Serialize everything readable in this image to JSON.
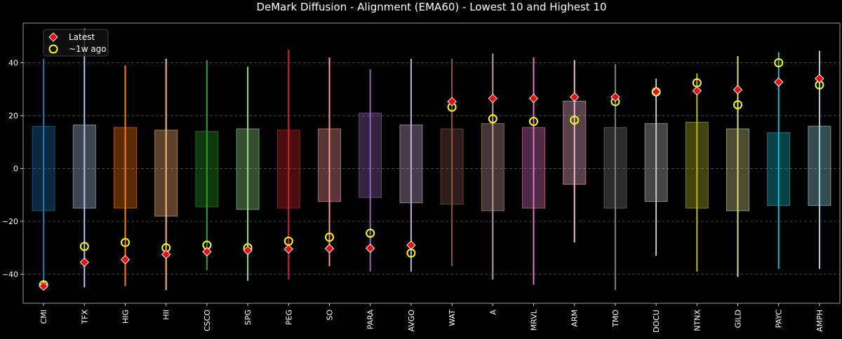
{
  "chart_data": {
    "type": "box",
    "title": "DeMark Diffusion - Alignment (EMA60) - Lowest 10 and Highest 10",
    "xlabel": "",
    "ylabel": "",
    "ylim": [
      -51,
      55
    ],
    "yticks": [
      -40,
      -20,
      0,
      20,
      40
    ],
    "grid": "y-dashed",
    "legend": {
      "placement": "top-left",
      "entries": [
        "Latest",
        "~1w ago"
      ]
    },
    "categories": [
      "CMI",
      "TFX",
      "HIG",
      "HII",
      "CSCO",
      "SPG",
      "PEG",
      "SO",
      "PARA",
      "AVGO",
      "WAT",
      "A",
      "MRVL",
      "ARM",
      "TMO",
      "DOCU",
      "NTNX",
      "GILD",
      "PAYC",
      "AMPH"
    ],
    "colors": [
      "#1f77b4",
      "#aec7e8",
      "#ff7f0e",
      "#ffbb78",
      "#2ca02c",
      "#98df8a",
      "#d62728",
      "#ff9896",
      "#9467bd",
      "#c5b0d5",
      "#8c564b",
      "#c49c94",
      "#e377c2",
      "#f7b6d2",
      "#7f7f7f",
      "#c7c7c7",
      "#bcbd22",
      "#dbdb8d",
      "#17becf",
      "#9edae5"
    ],
    "whisker_low": [
      -45,
      -45,
      -44.5,
      -46,
      -38.5,
      -42.5,
      -42,
      -37,
      -39,
      -39,
      -37,
      -42,
      -44,
      -28,
      -46,
      -33,
      -39,
      -41,
      -38,
      -38
    ],
    "whisker_high": [
      41.5,
      53,
      39,
      41.5,
      41,
      38.5,
      45,
      42,
      37.5,
      41.5,
      41.5,
      43.5,
      42,
      41,
      39.5,
      34,
      36,
      42.5,
      44,
      44.5
    ],
    "q1": [
      -16,
      -15,
      -15,
      -18,
      -14.5,
      -15.5,
      -15,
      -12.5,
      -11,
      -13,
      -13.5,
      -16,
      -15,
      -6,
      -15,
      -12.5,
      -15,
      -16,
      -14,
      -14
    ],
    "q3": [
      16,
      16.5,
      15.5,
      14.5,
      14,
      15,
      14.5,
      15,
      21,
      16.5,
      15,
      17,
      15.5,
      25.5,
      15.5,
      17,
      17.5,
      15,
      13.5,
      16
    ],
    "series": [
      {
        "name": "Latest",
        "values": [
          -44.5,
          -35.5,
          -34.5,
          -32.5,
          -31.5,
          -31,
          -30.5,
          -30.3,
          -30.2,
          -29,
          25.3,
          26.5,
          26.5,
          27,
          27,
          29,
          29.4,
          29.8,
          32.7,
          34
        ]
      },
      {
        "name": "~1w ago",
        "values": [
          -44,
          -29.5,
          -28,
          -30,
          -29,
          -30,
          -27.5,
          -26,
          -24.5,
          -32,
          23.2,
          18.8,
          17.8,
          18.3,
          25.3,
          29,
          32.4,
          24.1,
          40,
          31.6
        ]
      }
    ]
  }
}
